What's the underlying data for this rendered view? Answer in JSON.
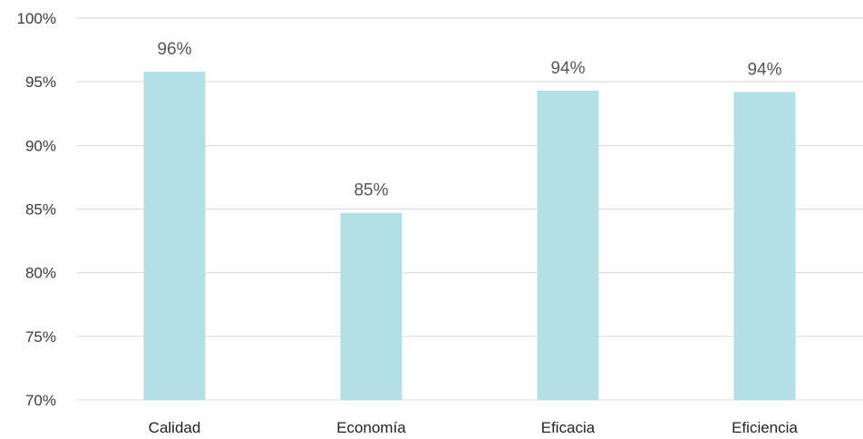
{
  "chart_data": {
    "type": "bar",
    "categories": [
      "Calidad",
      "Economía",
      "Eficacia",
      "Eficiencia"
    ],
    "values": [
      95.8,
      84.7,
      94.3,
      94.2
    ],
    "data_labels": [
      "96%",
      "85%",
      "94%",
      "94%"
    ],
    "title": "",
    "xlabel": "",
    "ylabel": "",
    "ylim": [
      70,
      100
    ],
    "yticks": [
      70,
      75,
      80,
      85,
      90,
      95,
      100
    ],
    "ytick_labels": [
      "70%",
      "75%",
      "80%",
      "85%",
      "90%",
      "95%",
      "100%"
    ],
    "grid": true,
    "legend": "none",
    "colors": {
      "bar": "#b3dfe5",
      "grid": "#d9d9d9",
      "data_label": "#555555"
    }
  }
}
